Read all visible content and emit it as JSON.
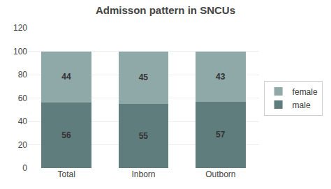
{
  "chart_data": {
    "type": "bar",
    "stacked": true,
    "title": "Admisson pattern in SNCUs",
    "categories": [
      "Total",
      "Inborn",
      "Outborn"
    ],
    "series": [
      {
        "name": "male",
        "color": "#607d7d",
        "values": [
          56,
          55,
          57
        ]
      },
      {
        "name": "female",
        "color": "#8fa8a8",
        "values": [
          44,
          45,
          43
        ]
      }
    ],
    "ylim": [
      0,
      120
    ],
    "yticks": [
      0,
      20,
      40,
      60,
      80,
      100,
      120
    ],
    "grid": true,
    "legend": "right",
    "data_labels": true
  }
}
